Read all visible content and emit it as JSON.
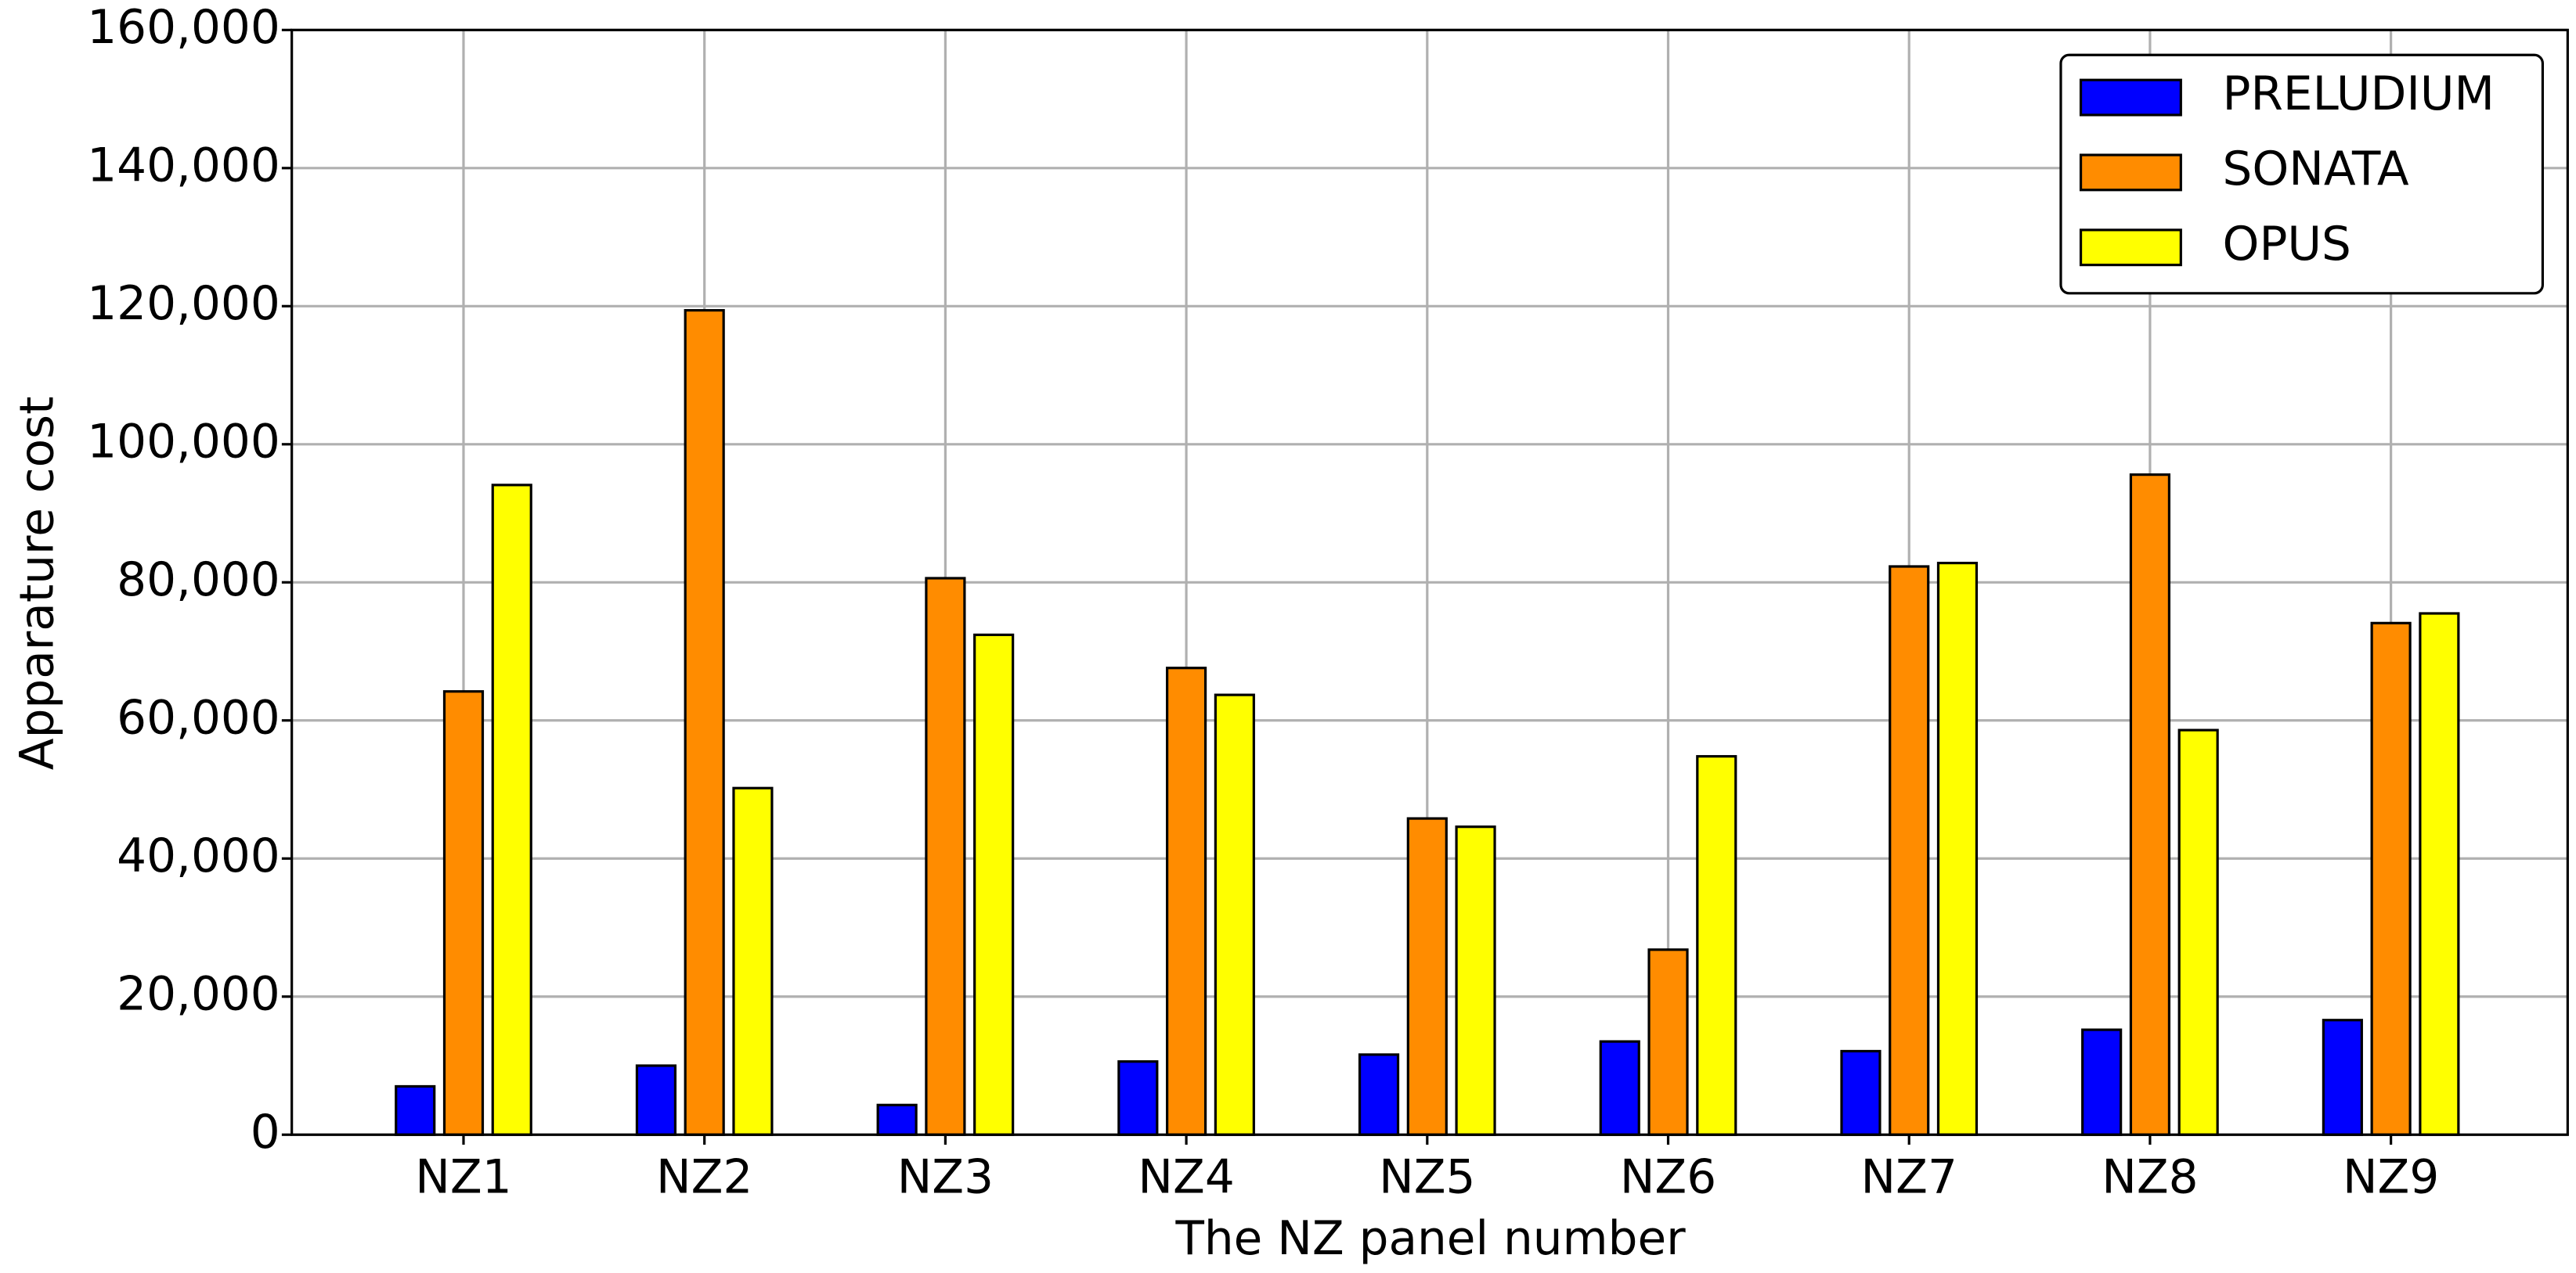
{
  "chart_data": {
    "type": "bar",
    "xlabel": "The NZ panel number",
    "ylabel": "Apparature cost",
    "categories": [
      "NZ1",
      "NZ2",
      "NZ3",
      "NZ4",
      "NZ5",
      "NZ6",
      "NZ7",
      "NZ8",
      "NZ9"
    ],
    "series": [
      {
        "name": "PRELUDIUM",
        "color": "#0000ff",
        "values": [
          7000,
          10000,
          4300,
          10600,
          11600,
          13500,
          12100,
          15200,
          16600
        ]
      },
      {
        "name": "SONATA",
        "color": "#ff8c00",
        "values": [
          64200,
          119400,
          80600,
          67600,
          45800,
          26800,
          82300,
          95600,
          74100
        ]
      },
      {
        "name": "OPUS",
        "color": "#ffff00",
        "values": [
          94100,
          50200,
          72400,
          63700,
          44600,
          54800,
          82800,
          58600,
          75500
        ]
      }
    ],
    "ylim": [
      0,
      160000
    ],
    "yticks": [
      0,
      {
        "value": 20000,
        "label": "20,000"
      },
      {
        "value": 40000,
        "label": "40,000"
      },
      {
        "value": 60000,
        "label": "60,000"
      },
      {
        "value": 80000,
        "label": "80,000"
      },
      {
        "value": 100000,
        "label": "100,000"
      },
      {
        "value": 120000,
        "label": "120,000"
      },
      {
        "value": 140000,
        "label": "140,000"
      },
      {
        "value": 160000,
        "label": "160,000"
      }
    ],
    "grid": true,
    "legend": "upper right"
  }
}
